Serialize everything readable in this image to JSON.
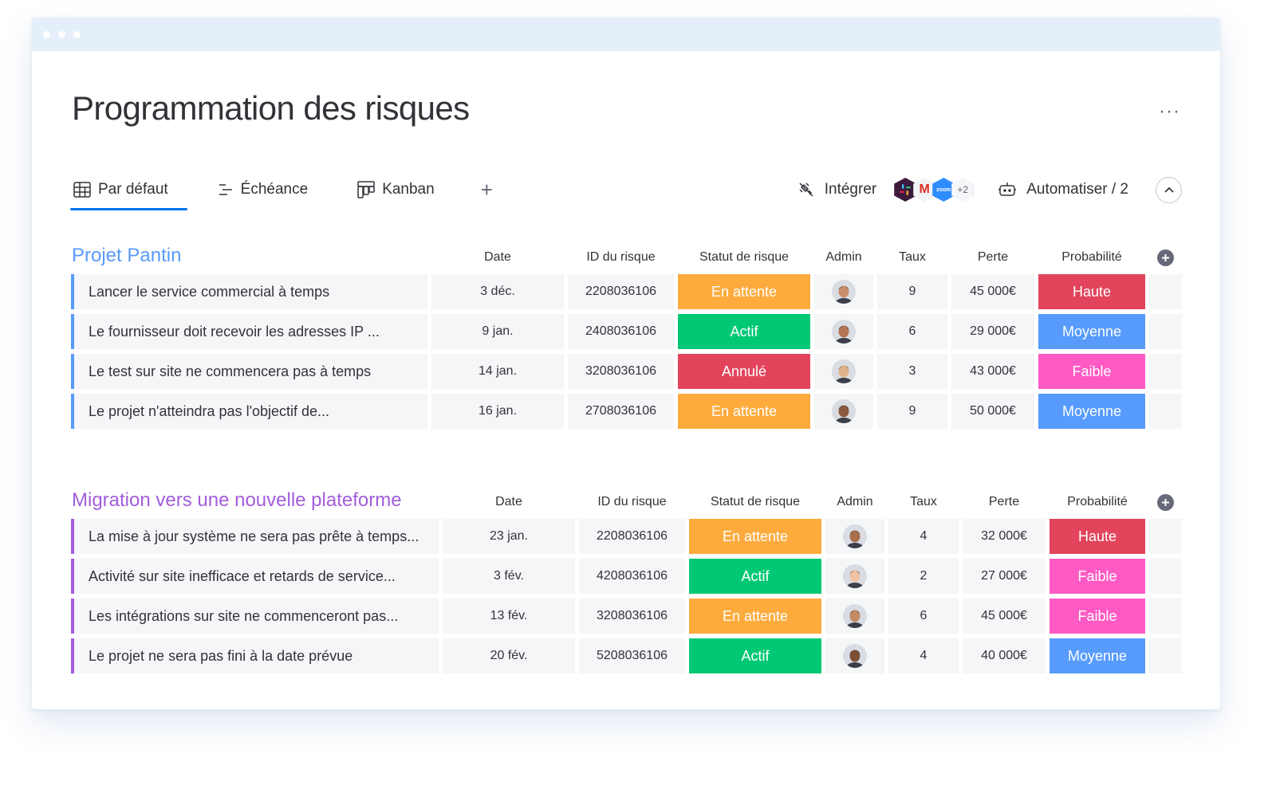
{
  "page": {
    "title": "Programmation des risques",
    "more": "···"
  },
  "views": [
    {
      "label": "Par défaut",
      "icon": "table-icon",
      "active": true
    },
    {
      "label": "Échéance",
      "icon": "timeline-icon",
      "active": false
    },
    {
      "label": "Kanban",
      "icon": "kanban-icon",
      "active": false
    }
  ],
  "add_view": "+",
  "integrate": {
    "label": "Intégrer",
    "more_count": "+2"
  },
  "automate": {
    "label": "Automatiser / 2"
  },
  "colors": {
    "en_attente": "#fdab3d",
    "actif": "#00c875",
    "annule": "#e2445c",
    "haute": "#e2445c",
    "moyenne": "#579bfc",
    "faible": "#ff5ac4",
    "group1": "#579bfc",
    "group2": "#a25ddc"
  },
  "groups": [
    {
      "title": "Projet Pantin",
      "color": "#579bfc",
      "columns": {
        "date": "Date",
        "id": "ID du risque",
        "status": "Statut de risque",
        "admin": "Admin",
        "rate": "Taux",
        "loss": "Perte",
        "prob": "Probabilité"
      },
      "rows": [
        {
          "name": "Lancer le service commercial à temps",
          "date": "3 déc.",
          "id": "2208036106",
          "status": "En attente",
          "status_color": "#fdab3d",
          "rate": "9",
          "loss": "45 000€",
          "prob": "Haute",
          "prob_color": "#e2445c"
        },
        {
          "name": "Le fournisseur doit recevoir les adresses IP ...",
          "date": "9 jan.",
          "id": "2408036106",
          "status": "Actif",
          "status_color": "#00c875",
          "rate": "6",
          "loss": "29 000€",
          "prob": "Moyenne",
          "prob_color": "#579bfc"
        },
        {
          "name": "Le test sur site ne commencera pas à temps",
          "date": "14 jan.",
          "id": "3208036106",
          "status": "Annulé",
          "status_color": "#e2445c",
          "rate": "3",
          "loss": "43 000€",
          "prob": "Faible",
          "prob_color": "#ff5ac4"
        },
        {
          "name": "Le projet n'atteindra pas l'objectif de...",
          "date": "16 jan.",
          "id": "2708036106",
          "status": "En attente",
          "status_color": "#fdab3d",
          "rate": "9",
          "loss": "50 000€",
          "prob": "Moyenne",
          "prob_color": "#579bfc"
        }
      ]
    },
    {
      "title": "Migration vers une nouvelle plateforme",
      "color": "#a25ddc",
      "columns": {
        "date": "Date",
        "id": "ID du risque",
        "status": "Statut de risque",
        "admin": "Admin",
        "rate": "Taux",
        "loss": "Perte",
        "prob": "Probabilité"
      },
      "rows": [
        {
          "name": "La mise à jour système ne sera pas prête à temps...",
          "date": "23 jan.",
          "id": "2208036106",
          "status": "En attente",
          "status_color": "#fdab3d",
          "rate": "4",
          "loss": "32 000€",
          "prob": "Haute",
          "prob_color": "#e2445c"
        },
        {
          "name": "Activité sur site inefficace et retards de service...",
          "date": "3 fév.",
          "id": "4208036106",
          "status": "Actif",
          "status_color": "#00c875",
          "rate": "2",
          "loss": "27 000€",
          "prob": "Faible",
          "prob_color": "#ff5ac4"
        },
        {
          "name": "Les intégrations sur site ne commenceront pas...",
          "date": "13 fév.",
          "id": "3208036106",
          "status": "En attente",
          "status_color": "#fdab3d",
          "rate": "6",
          "loss": "45 000€",
          "prob": "Faible",
          "prob_color": "#ff5ac4"
        },
        {
          "name": "Le projet ne sera pas fini à la date prévue",
          "date": "20 fév.",
          "id": "5208036106",
          "status": "Actif",
          "status_color": "#00c875",
          "rate": "4",
          "loss": "40 000€",
          "prob": "Moyenne",
          "prob_color": "#579bfc"
        }
      ]
    }
  ]
}
